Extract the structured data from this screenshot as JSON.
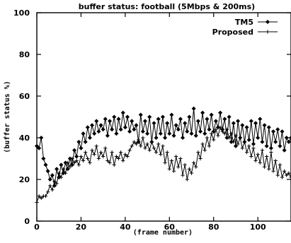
{
  "chart_data": {
    "type": "line",
    "title": "buffer status: football (5Mbps & 200ms)",
    "xlabel": "(frame number)",
    "ylabel": "(buffer status %)",
    "xlim": [
      0,
      115
    ],
    "ylim": [
      0,
      100
    ],
    "x_ticks": [
      0,
      20,
      40,
      60,
      80,
      100
    ],
    "y_ticks": [
      0,
      20,
      40,
      60,
      80,
      100
    ],
    "grid": false,
    "legend_position": "top-right",
    "series": [
      {
        "name": "TM5",
        "marker": "diamond",
        "color": "#000000",
        "x": [
          0,
          1,
          2,
          3,
          4,
          5,
          6,
          7,
          8,
          9,
          10,
          11,
          12,
          13,
          14,
          15,
          16,
          17,
          18,
          19,
          20,
          21,
          22,
          23,
          24,
          25,
          26,
          27,
          28,
          29,
          30,
          31,
          32,
          33,
          34,
          35,
          36,
          37,
          38,
          39,
          40,
          41,
          42,
          43,
          44,
          45,
          46,
          47,
          48,
          49,
          50,
          51,
          52,
          53,
          54,
          55,
          56,
          57,
          58,
          59,
          60,
          61,
          62,
          63,
          64,
          65,
          66,
          67,
          68,
          69,
          70,
          71,
          72,
          73,
          74,
          75,
          76,
          77,
          78,
          79,
          80,
          81,
          82,
          83,
          84,
          85,
          86,
          87,
          88,
          89,
          90,
          91,
          92,
          93,
          94,
          95,
          96,
          97,
          98,
          99,
          100,
          101,
          102,
          103,
          104,
          105,
          106,
          107,
          108,
          109,
          110,
          111,
          112,
          113,
          114,
          115
        ],
        "y": [
          36,
          35,
          40,
          30,
          27,
          24,
          20,
          22,
          17,
          25,
          21,
          27,
          23,
          28,
          25,
          30,
          27,
          34,
          31,
          38,
          35,
          42,
          38,
          45,
          40,
          46,
          42,
          48,
          43,
          46,
          44,
          49,
          41,
          48,
          44,
          50,
          42,
          49,
          44,
          52,
          45,
          50,
          43,
          48,
          44,
          46,
          38,
          51,
          43,
          48,
          42,
          50,
          38,
          47,
          40,
          49,
          42,
          50,
          40,
          47,
          42,
          51,
          41,
          46,
          44,
          49,
          40,
          47,
          43,
          50,
          42,
          54,
          41,
          48,
          43,
          52,
          42,
          49,
          44,
          51,
          43,
          48,
          45,
          52,
          44,
          49,
          40,
          50,
          38,
          47,
          36,
          48,
          40,
          46,
          38,
          45,
          39,
          48,
          37,
          47,
          40,
          49,
          38,
          46,
          36,
          45,
          35,
          43,
          38,
          44,
          36,
          43,
          34,
          40,
          38,
          40
        ]
      },
      {
        "name": "Proposed",
        "marker": "plus",
        "color": "#000000",
        "x": [
          0,
          1,
          2,
          3,
          4,
          5,
          6,
          7,
          8,
          9,
          10,
          11,
          12,
          13,
          14,
          15,
          16,
          17,
          18,
          19,
          20,
          21,
          22,
          23,
          24,
          25,
          26,
          27,
          28,
          29,
          30,
          31,
          32,
          33,
          34,
          35,
          36,
          37,
          38,
          39,
          40,
          41,
          42,
          43,
          44,
          45,
          46,
          47,
          48,
          49,
          50,
          51,
          52,
          53,
          54,
          55,
          56,
          57,
          58,
          59,
          60,
          61,
          62,
          63,
          64,
          65,
          66,
          67,
          68,
          69,
          70,
          71,
          72,
          73,
          74,
          75,
          76,
          77,
          78,
          79,
          80,
          81,
          82,
          83,
          84,
          85,
          86,
          87,
          88,
          89,
          90,
          91,
          92,
          93,
          94,
          95,
          96,
          97,
          98,
          99,
          100,
          101,
          102,
          103,
          104,
          105,
          106,
          107,
          108,
          109,
          110,
          111,
          112,
          113,
          114,
          115
        ],
        "y": [
          9,
          12,
          11,
          12,
          12,
          14,
          17,
          15,
          19,
          18,
          23,
          21,
          25,
          23,
          28,
          26,
          30,
          28,
          29,
          27,
          31,
          29,
          33,
          30,
          28,
          34,
          32,
          36,
          30,
          33,
          31,
          35,
          29,
          28,
          33,
          27,
          31,
          30,
          33,
          29,
          32,
          31,
          34,
          36,
          38,
          37,
          39,
          36,
          40,
          35,
          37,
          34,
          38,
          35,
          33,
          37,
          32,
          36,
          28,
          33,
          25,
          29,
          24,
          31,
          26,
          30,
          22,
          27,
          20,
          25,
          23,
          28,
          26,
          33,
          30,
          37,
          34,
          40,
          36,
          42,
          39,
          44,
          41,
          45,
          43,
          42,
          44,
          40,
          42,
          38,
          41,
          37,
          40,
          35,
          38,
          33,
          36,
          31,
          35,
          29,
          32,
          28,
          34,
          26,
          31,
          25,
          33,
          24,
          29,
          22,
          27,
          21,
          24,
          22,
          23,
          21
        ]
      }
    ]
  }
}
